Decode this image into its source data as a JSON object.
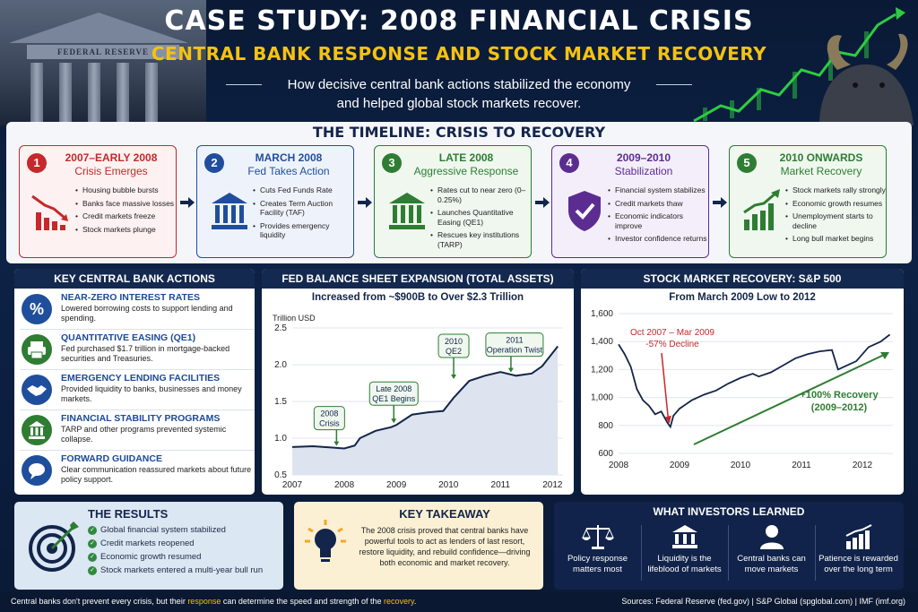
{
  "header": {
    "title": "CASE STUDY: 2008 FINANCIAL CRISIS",
    "subtitle": "CENTRAL BANK RESPONSE AND STOCK MARKET RECOVERY",
    "tagline_1": "How decisive central bank actions stabilized the economy",
    "tagline_2": "and helped global stock markets recover.",
    "building_sign": "FEDERAL RESERVE"
  },
  "timeline": {
    "title": "THE TIMELINE: CRISIS TO RECOVERY",
    "steps": [
      {
        "num": "1",
        "date": "2007–EARLY 2008",
        "name": "Crisis Emerges",
        "color": "#c6282b",
        "bullets": [
          "Housing bubble bursts",
          "Banks face massive losses",
          "Credit markets freeze",
          "Stock markets plunge"
        ]
      },
      {
        "num": "2",
        "date": "MARCH 2008",
        "name": "Fed Takes Action",
        "color": "#1f4f9c",
        "bullets": [
          "Cuts Fed Funds Rate",
          "Creates Term Auction Facility (TAF)",
          "Provides emergency liquidity"
        ]
      },
      {
        "num": "3",
        "date": "LATE 2008",
        "name": "Aggressive Response",
        "color": "#2e7d32",
        "bullets": [
          "Rates cut to near zero (0–0.25%)",
          "Launches Quantitative Easing (QE1)",
          "Rescues key institutions (TARP)"
        ]
      },
      {
        "num": "4",
        "date": "2009–2010",
        "name": "Stabilization",
        "color": "#5b2d91",
        "bullets": [
          "Financial system stabilizes",
          "Credit markets thaw",
          "Economic indicators improve",
          "Investor confidence returns"
        ]
      },
      {
        "num": "5",
        "date": "2010 ONWARDS",
        "name": "Market Recovery",
        "color": "#2e7d32",
        "bullets": [
          "Stock markets rally strongly",
          "Economic growth resumes",
          "Unemployment starts to decline",
          "Long bull market begins"
        ]
      }
    ]
  },
  "actions": {
    "title": "KEY CENTRAL BANK ACTIONS",
    "items": [
      {
        "title": "NEAR-ZERO INTEREST RATES",
        "desc": "Lowered borrowing costs to support lending and spending.",
        "icon": "percent-icon",
        "glyph": "%",
        "color": "#1f4f9c"
      },
      {
        "title": "QUANTITATIVE EASING (QE1)",
        "desc": "Fed purchased $1.7 trillion in mortgage-backed securities and Treasuries.",
        "icon": "printer-icon",
        "glyph": "",
        "color": "#2e7d32"
      },
      {
        "title": "EMERGENCY LENDING FACILITIES",
        "desc": "Provided liquidity to banks, businesses and money markets.",
        "icon": "handshake-icon",
        "glyph": "",
        "color": "#1f4f9c"
      },
      {
        "title": "FINANCIAL STABILITY PROGRAMS",
        "desc": "TARP and other programs prevented systemic collapse.",
        "icon": "bank-icon",
        "glyph": "",
        "color": "#2e7d32"
      },
      {
        "title": "FORWARD GUIDANCE",
        "desc": "Clear communication reassured markets about future policy support.",
        "icon": "speech-bubble-icon",
        "glyph": "",
        "color": "#1f4f9c"
      }
    ]
  },
  "chart_data": [
    {
      "type": "area",
      "title": "FED BALANCE SHEET EXPANSION (TOTAL ASSETS)",
      "subtitle": "Increased from ~$900B to Over $2.3 Trillion",
      "ylabel": "Trillion USD",
      "xlim": [
        2007,
        2012.2
      ],
      "ylim": [
        0.5,
        2.5
      ],
      "x_ticks": [
        "2007",
        "2008",
        "2009",
        "2010",
        "2011",
        "2012"
      ],
      "y_ticks": [
        "0.5",
        "1.0",
        "1.5",
        "2.0",
        "2.5"
      ],
      "x": [
        2007.0,
        2007.4,
        2007.8,
        2008.0,
        2008.2,
        2008.3,
        2008.6,
        2008.9,
        2009.0,
        2009.3,
        2009.6,
        2009.9,
        2010.1,
        2010.4,
        2010.7,
        2011.0,
        2011.3,
        2011.6,
        2011.8,
        2012.1
      ],
      "y": [
        0.88,
        0.89,
        0.87,
        0.86,
        0.9,
        1.0,
        1.1,
        1.15,
        1.18,
        1.32,
        1.35,
        1.37,
        1.55,
        1.78,
        1.85,
        1.9,
        1.85,
        1.88,
        1.98,
        2.25
      ],
      "annotations": [
        {
          "label_1": "2008",
          "label_2": "Crisis",
          "x": 2007.85,
          "y": 0.87
        },
        {
          "label_1": "Late 2008",
          "label_2": "QE1 Begins",
          "x": 2008.95,
          "y": 1.18
        },
        {
          "label_1": "2010",
          "label_2": "QE2",
          "x": 2010.1,
          "y": 1.78
        },
        {
          "label_1": "2011",
          "label_2": "Operation Twist",
          "x": 2011.2,
          "y": 1.87
        }
      ]
    },
    {
      "type": "line",
      "title": "STOCK MARKET RECOVERY: S&P 500",
      "subtitle": "From March 2009 Low to 2012",
      "xlim": [
        2008,
        2012.5
      ],
      "ylim": [
        600,
        1600
      ],
      "x_ticks": [
        "2008",
        "2009",
        "2010",
        "2011",
        "2012"
      ],
      "y_ticks": [
        "600",
        "800",
        "1,000",
        "1,200",
        "1,400",
        "1,600"
      ],
      "x": [
        2008.0,
        2008.1,
        2008.2,
        2008.3,
        2008.4,
        2008.5,
        2008.6,
        2008.7,
        2008.8,
        2008.85,
        2008.9,
        2009.0,
        2009.2,
        2009.4,
        2009.6,
        2009.8,
        2010.0,
        2010.2,
        2010.3,
        2010.5,
        2010.7,
        2010.9,
        2011.1,
        2011.3,
        2011.5,
        2011.6,
        2011.75,
        2011.9,
        2012.1,
        2012.3,
        2012.45
      ],
      "y": [
        1380,
        1310,
        1220,
        1060,
        980,
        940,
        880,
        900,
        820,
        790,
        870,
        920,
        980,
        1020,
        1050,
        1100,
        1140,
        1170,
        1150,
        1180,
        1230,
        1280,
        1310,
        1330,
        1340,
        1200,
        1230,
        1260,
        1360,
        1400,
        1450
      ],
      "decline_label_1": "Oct 2007 – Mar 2009",
      "decline_label_2": "-57% Decline",
      "recovery_label_1": "+100% Recovery",
      "recovery_label_2": "(2009–2012)"
    }
  ],
  "results": {
    "title": "THE RESULTS",
    "items": [
      "Global financial system stabilized",
      "Credit markets reopened",
      "Economic growth resumed",
      "Stock markets entered a multi-year bull run"
    ]
  },
  "takeaway": {
    "title": "KEY TAKEAWAY",
    "text": "The 2008 crisis proved that central banks have powerful tools to act as lenders of last resort, restore liquidity, and rebuild confidence—driving both economic and market recovery."
  },
  "investors": {
    "title": "WHAT INVESTORS LEARNED",
    "items": [
      {
        "line1": "Policy response",
        "line2": "matters most",
        "icon": "scales-icon"
      },
      {
        "line1": "Liquidity is the",
        "line2": "lifeblood of markets",
        "icon": "bank-icon"
      },
      {
        "line1": "Central banks can",
        "line2": "move markets",
        "icon": "person-icon"
      },
      {
        "line1": "Patience is rewarded",
        "line2": "over the long term",
        "icon": "growth-chart-icon"
      }
    ]
  },
  "footer": {
    "note_1": "Central banks don't prevent every crisis, but their ",
    "note_2": "response",
    "note_3": " can determine the speed and strength of the ",
    "note_4": "recovery",
    "note_5": ".",
    "sources": "Sources: Federal Reserve (fed.gov)  |  S&P Global (spglobal.com)  |  IMF (imf.org)"
  }
}
